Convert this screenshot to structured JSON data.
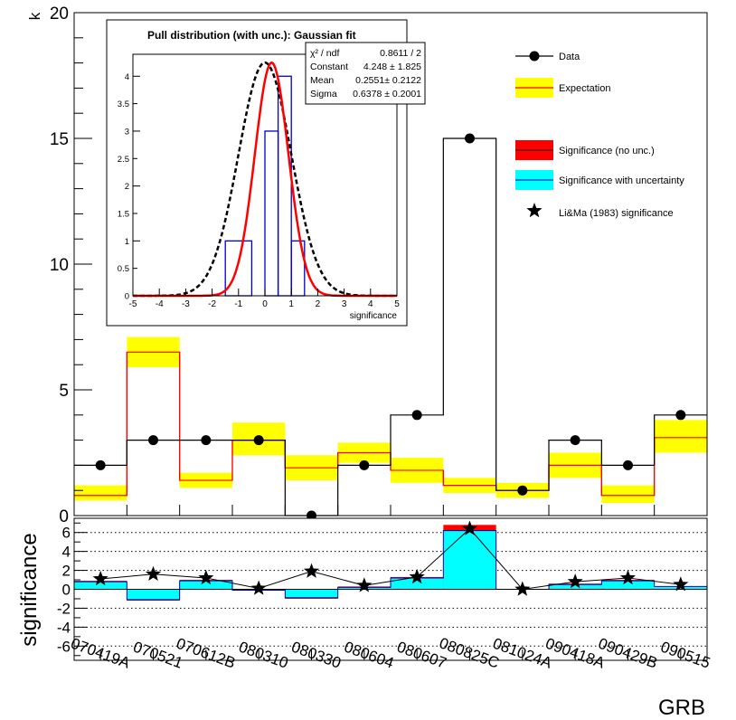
{
  "chart_data": [
    {
      "type": "bar",
      "panel": "counts",
      "ylabel": "k",
      "ylim": [
        0,
        20
      ],
      "yticks": [
        "0",
        "5",
        "10",
        "15",
        "20"
      ],
      "categories": [
        "070419A",
        "070521",
        "070612B",
        "080310",
        "080330",
        "080604",
        "080607",
        "080825C",
        "081024A",
        "090418A",
        "090429B",
        "090515"
      ],
      "series": [
        {
          "name": "Data",
          "style": "histogram-with-markers",
          "values": [
            2,
            3,
            3,
            3,
            0,
            2,
            4,
            15,
            1,
            3,
            2,
            4
          ]
        },
        {
          "name": "Expectation",
          "style": "line-with-band",
          "values": [
            0.8,
            6.5,
            1.4,
            3.0,
            1.9,
            2.5,
            1.8,
            1.2,
            1.0,
            2.0,
            0.8,
            3.1
          ],
          "band_low": [
            0.6,
            5.9,
            1.1,
            2.4,
            1.4,
            2.1,
            1.3,
            0.9,
            0.7,
            1.5,
            0.5,
            2.5
          ],
          "band_high": [
            1.2,
            7.1,
            1.7,
            3.7,
            2.4,
            2.9,
            2.3,
            1.5,
            1.3,
            2.5,
            1.2,
            3.8
          ]
        }
      ],
      "legend": {
        "position": "top-right",
        "entries": [
          "Data",
          "Expectation",
          "Significance (no unc.)",
          "Significance with uncertainty",
          "Li&Ma (1983) significance"
        ]
      },
      "colors": {
        "expectation_line": "#ff0000",
        "expectation_band": "#ffff00",
        "sig_no_unc": "#ff0000",
        "sig_with_unc": "#00ffff"
      }
    },
    {
      "type": "bar",
      "panel": "significance",
      "xlabel": "GRB",
      "ylabel": "significance",
      "ylim": [
        -7.5,
        7.5
      ],
      "yticks": [
        "-6",
        "-4",
        "-2",
        "0",
        "2",
        "4",
        "6"
      ],
      "grid": true,
      "categories": [
        "070419A",
        "070521",
        "070612B",
        "080310",
        "080330",
        "080604",
        "080607",
        "080825C",
        "081024A",
        "090418A",
        "090429B",
        "090515"
      ],
      "series": [
        {
          "name": "Significance (no unc.)",
          "values": [
            0.9,
            -1.2,
            1.0,
            -0.1,
            -1.0,
            0.3,
            1.3,
            6.8,
            0.0,
            0.6,
            1.0,
            0.3
          ]
        },
        {
          "name": "Significance with uncertainty",
          "values": [
            0.8,
            -1.1,
            0.9,
            -0.1,
            -0.9,
            0.2,
            1.2,
            6.2,
            0.0,
            0.5,
            0.9,
            0.3
          ]
        },
        {
          "name": "Li&Ma (1983) significance",
          "values": [
            1.1,
            1.6,
            1.2,
            0.1,
            1.9,
            0.4,
            1.3,
            6.4,
            0.0,
            0.8,
            1.2,
            0.5
          ]
        }
      ]
    },
    {
      "type": "bar",
      "panel": "inset",
      "title": "Pull distribution (with unc.): Gaussian fit",
      "xlabel": "significance",
      "xlim": [
        -5,
        5
      ],
      "ylim": [
        0,
        4.4
      ],
      "xticks": [
        "-5",
        "-4",
        "-3",
        "-2",
        "-1",
        "0",
        "1",
        "2",
        "3",
        "4",
        "5"
      ],
      "yticks": [
        "0",
        "0.5",
        "1",
        "1.5",
        "2",
        "2.5",
        "3",
        "3.5",
        "4"
      ],
      "bins": [
        {
          "x0": -1.5,
          "x1": -0.5,
          "count": 1
        },
        {
          "x0": -0.5,
          "x1": 0.0,
          "count": 0
        },
        {
          "x0": 0.0,
          "x1": 0.5,
          "count": 3
        },
        {
          "x0": 0.5,
          "x1": 1.0,
          "count": 4
        },
        {
          "x0": 1.0,
          "x1": 1.5,
          "count": 1
        }
      ],
      "fit": {
        "name": "Gaussian fit",
        "constant": 4.248,
        "mean": 0.2551,
        "sigma": 0.6378
      },
      "reference": {
        "name": "reference Gaussian",
        "constant": 4.248,
        "mean": 0.0,
        "sigma": 1.0
      },
      "stats": [
        {
          "label": "χ² / ndf",
          "value": "0.8611 / 2"
        },
        {
          "label": "Constant",
          "value": "4.248 ± 1.825"
        },
        {
          "label": "Mean",
          "value": "0.2551± 0.2122"
        },
        {
          "label": "Sigma",
          "value": "0.6378 ± 0.2001"
        }
      ]
    }
  ]
}
